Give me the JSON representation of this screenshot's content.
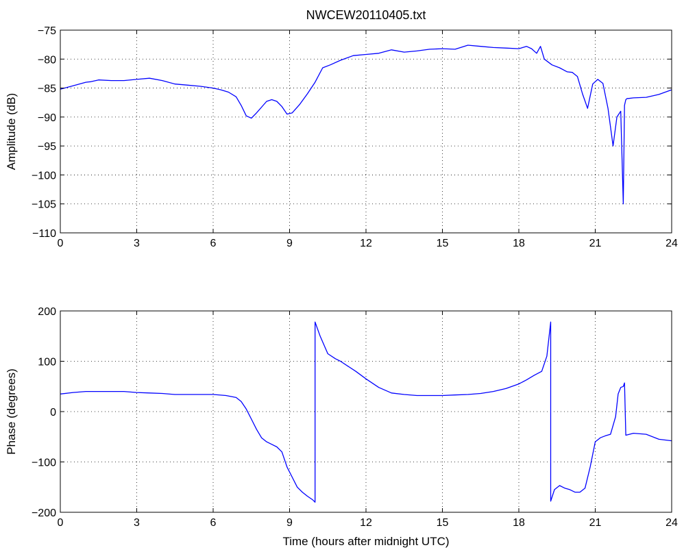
{
  "figure": {
    "title": "NWCEW20110405.txt",
    "line_color": "#0000ff"
  },
  "chart_data": [
    {
      "type": "line",
      "title": "NWCEW20110405.txt",
      "xlabel": "",
      "ylabel": "Amplitude (dB)",
      "xlim": [
        0,
        24
      ],
      "ylim": [
        -110,
        -75
      ],
      "xticks": [
        0,
        3,
        6,
        9,
        12,
        15,
        18,
        21,
        24
      ],
      "yticks": [
        -110,
        -105,
        -100,
        -95,
        -90,
        -85,
        -80,
        -75
      ],
      "grid": true,
      "series": [
        {
          "color": "#0000ff",
          "x": [
            0,
            0.5,
            1,
            1.2,
            1.5,
            2,
            2.5,
            3,
            3.5,
            4,
            4.5,
            5,
            5.5,
            6,
            6.3,
            6.6,
            6.9,
            7.1,
            7.3,
            7.5,
            7.7,
            7.9,
            8.1,
            8.3,
            8.5,
            8.7,
            8.9,
            9.1,
            9.4,
            9.7,
            10.0,
            10.3,
            10.6,
            11.0,
            11.5,
            12.0,
            12.5,
            13.0,
            13.5,
            14.0,
            14.5,
            15.0,
            15.5,
            16.0,
            16.5,
            17.0,
            17.5,
            18.0,
            18.3,
            18.5,
            18.7,
            18.85,
            19.0,
            19.3,
            19.6,
            19.9,
            20.1,
            20.3,
            20.5,
            20.7,
            20.9,
            21.1,
            21.3,
            21.5,
            21.7,
            21.85,
            22.0,
            22.1,
            22.15,
            22.2,
            22.25,
            22.3,
            22.5,
            23.0,
            23.5,
            24.0
          ],
          "y": [
            -85.2,
            -84.6,
            -84.0,
            -83.9,
            -83.6,
            -83.7,
            -83.7,
            -83.5,
            -83.3,
            -83.7,
            -84.3,
            -84.5,
            -84.7,
            -85.0,
            -85.3,
            -85.7,
            -86.5,
            -88.0,
            -89.8,
            -90.2,
            -89.3,
            -88.3,
            -87.3,
            -87.0,
            -87.3,
            -88.2,
            -89.5,
            -89.3,
            -87.8,
            -86.0,
            -84.0,
            -81.5,
            -81.0,
            -80.2,
            -79.4,
            -79.2,
            -79.0,
            -78.4,
            -78.8,
            -78.6,
            -78.3,
            -78.2,
            -78.3,
            -77.6,
            -77.8,
            -78.0,
            -78.1,
            -78.2,
            -77.8,
            -78.2,
            -79.0,
            -77.8,
            -80.0,
            -81.0,
            -81.5,
            -82.2,
            -82.3,
            -83.0,
            -86.0,
            -88.5,
            -84.3,
            -83.5,
            -84.2,
            -88.5,
            -95.0,
            -90.0,
            -89.0,
            -105.0,
            -88.0,
            -87.0,
            -86.8,
            -86.8,
            -86.7,
            -86.6,
            -86.1,
            -85.3
          ]
        }
      ]
    },
    {
      "type": "line",
      "title": "",
      "xlabel": "Time (hours after midnight UTC)",
      "ylabel": "Phase (degrees)",
      "xlim": [
        0,
        24
      ],
      "ylim": [
        -200,
        200
      ],
      "xticks": [
        0,
        3,
        6,
        9,
        12,
        15,
        18,
        21,
        24
      ],
      "yticks": [
        -200,
        -100,
        0,
        100,
        200
      ],
      "grid": true,
      "series": [
        {
          "color": "#0000ff",
          "x": [
            0,
            0.5,
            1,
            1.5,
            2,
            2.5,
            3,
            3.5,
            4,
            4.5,
            5,
            5.5,
            6,
            6.5,
            6.9,
            7.1,
            7.3,
            7.5,
            7.7,
            7.9,
            8.1,
            8.3,
            8.5,
            8.7,
            8.9,
            9.1,
            9.3,
            9.5,
            9.7,
            9.9,
            10.0,
            10.0,
            10.2,
            10.5,
            10.8,
            11.0,
            11.3,
            11.6,
            12.0,
            12.5,
            13.0,
            13.5,
            14.0,
            14.5,
            15.0,
            15.5,
            16.0,
            16.5,
            17.0,
            17.5,
            18.0,
            18.3,
            18.6,
            18.9,
            19.1,
            19.25,
            19.25,
            19.4,
            19.6,
            19.8,
            20.0,
            20.2,
            20.4,
            20.6,
            20.8,
            21.0,
            21.2,
            21.4,
            21.6,
            21.8,
            21.9,
            22.0,
            22.1,
            22.15,
            22.2,
            22.5,
            23.0,
            23.5,
            24.0
          ],
          "y": [
            35,
            38,
            40,
            40,
            40,
            40,
            38,
            37,
            36,
            34,
            34,
            34,
            34,
            32,
            28,
            20,
            5,
            -15,
            -35,
            -52,
            -60,
            -65,
            -70,
            -80,
            -110,
            -130,
            -150,
            -160,
            -168,
            -175,
            -180,
            178,
            150,
            115,
            105,
            100,
            90,
            80,
            65,
            48,
            37,
            34,
            32,
            32,
            32,
            33,
            34,
            36,
            40,
            46,
            55,
            63,
            72,
            80,
            110,
            178,
            -178,
            -155,
            -147,
            -152,
            -155,
            -160,
            -160,
            -152,
            -110,
            -60,
            -52,
            -48,
            -45,
            -10,
            35,
            48,
            50,
            57,
            -47,
            -43,
            -45,
            -55,
            -58
          ]
        }
      ]
    }
  ]
}
